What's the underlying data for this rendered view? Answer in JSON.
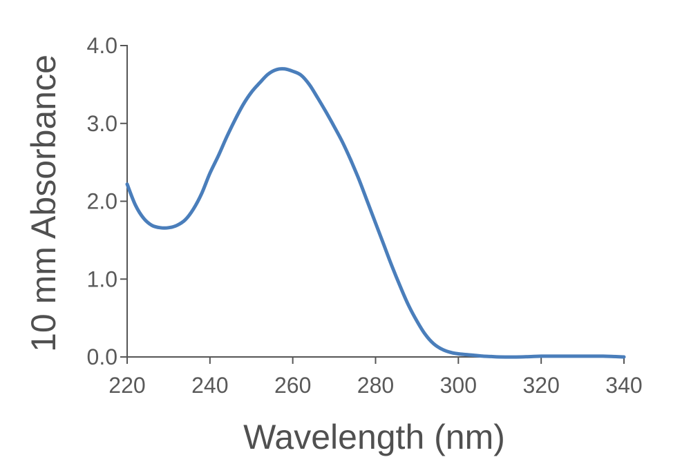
{
  "chart_data": {
    "type": "line",
    "xlabel": "Wavelength (nm)",
    "ylabel": "10 mm Absorbance",
    "xlim": [
      220,
      340
    ],
    "ylim": [
      0,
      4.0
    ],
    "xticks": [
      220,
      240,
      260,
      280,
      300,
      320,
      340
    ],
    "xtick_labels": [
      "220",
      "240",
      "260",
      "280",
      "300",
      "320",
      "340"
    ],
    "yticks": [
      0,
      1,
      2,
      3,
      4
    ],
    "ytick_labels": [
      "0.0",
      "1.0",
      "2.0",
      "3.0",
      "4.0"
    ],
    "grid": false,
    "legend": "none",
    "series": [
      {
        "color": "#4a7ebb",
        "x": [
          220,
          222,
          224,
          226,
          228,
          230,
          232,
          234,
          236,
          238,
          240,
          242,
          244,
          246,
          248,
          250,
          252,
          254,
          256,
          258,
          260,
          262,
          264,
          266,
          268,
          270,
          272,
          274,
          276,
          278,
          280,
          282,
          284,
          286,
          288,
          290,
          292,
          294,
          296,
          298,
          300,
          302,
          304,
          306,
          308,
          310,
          315,
          320,
          325,
          330,
          335,
          340
        ],
        "y": [
          2.22,
          1.95,
          1.78,
          1.69,
          1.66,
          1.66,
          1.69,
          1.76,
          1.9,
          2.1,
          2.36,
          2.58,
          2.82,
          3.04,
          3.24,
          3.4,
          3.52,
          3.63,
          3.69,
          3.7,
          3.67,
          3.62,
          3.5,
          3.33,
          3.15,
          2.96,
          2.76,
          2.53,
          2.28,
          2.0,
          1.72,
          1.44,
          1.16,
          0.9,
          0.66,
          0.46,
          0.29,
          0.17,
          0.1,
          0.06,
          0.04,
          0.03,
          0.02,
          0.01,
          0.005,
          0.0,
          0.0,
          0.01,
          0.01,
          0.01,
          0.01,
          0.0
        ]
      }
    ]
  }
}
